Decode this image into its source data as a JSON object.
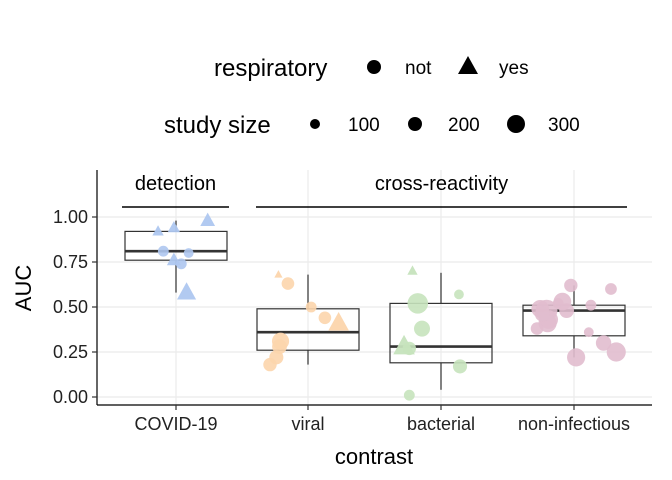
{
  "chart_data": {
    "type": "boxplot",
    "xlabel": "contrast",
    "ylabel": "AUC",
    "categories": [
      "COVID-19",
      "viral",
      "bacterial",
      "non-infectious"
    ],
    "ylim": [
      -0.05,
      1.25
    ],
    "yticks": [
      "0.00",
      "0.25",
      "0.50",
      "0.75",
      "1.00"
    ],
    "ytick_values": [
      0,
      0.25,
      0.5,
      0.75,
      1.0
    ],
    "grid": true,
    "legend_placement": "top",
    "legend": {
      "respiratory": {
        "title": "respiratory",
        "entries": [
          {
            "label": "not",
            "shape": "circle"
          },
          {
            "label": "yes",
            "shape": "triangle"
          }
        ]
      },
      "study_size": {
        "title": "study size",
        "entries": [
          {
            "label": "100",
            "value": 100
          },
          {
            "label": "200",
            "value": 200
          },
          {
            "label": "300",
            "value": 300
          }
        ]
      }
    },
    "groups": [
      {
        "label": "detection",
        "categories": [
          "COVID-19"
        ]
      },
      {
        "label": "cross-reactivity",
        "categories": [
          "viral",
          "bacterial",
          "non-infectious"
        ]
      }
    ],
    "colors": {
      "COVID-19": "#aec7f0",
      "viral": "#fcd5ac",
      "bacterial": "#c6e3bd",
      "non-infectious": "#e1bcce"
    },
    "boxes": [
      {
        "category": "COVID-19",
        "whisker_low": 0.58,
        "q1": 0.76,
        "median": 0.81,
        "q3": 0.92,
        "whisker_high": 0.98
      },
      {
        "category": "viral",
        "whisker_low": 0.18,
        "q1": 0.26,
        "median": 0.36,
        "q3": 0.49,
        "whisker_high": 0.68
      },
      {
        "category": "bacterial",
        "whisker_low": 0.04,
        "q1": 0.19,
        "median": 0.28,
        "q3": 0.52,
        "whisker_high": 0.69
      },
      {
        "category": "non-infectious",
        "whisker_low": 0.22,
        "q1": 0.34,
        "median": 0.48,
        "q3": 0.51,
        "whisker_high": 0.62
      }
    ],
    "points": [
      {
        "category": "COVID-19",
        "jitter": -0.17,
        "y": 0.92,
        "respiratory": "yes",
        "size": 40
      },
      {
        "category": "COVID-19",
        "jitter": -0.12,
        "y": 0.81,
        "respiratory": "not",
        "size": 40
      },
      {
        "category": "COVID-19",
        "jitter": -0.02,
        "y": 0.94,
        "respiratory": "yes",
        "size": 50
      },
      {
        "category": "COVID-19",
        "jitter": -0.02,
        "y": 0.76,
        "respiratory": "yes",
        "size": 70
      },
      {
        "category": "COVID-19",
        "jitter": 0.05,
        "y": 0.74,
        "respiratory": "not",
        "size": 40
      },
      {
        "category": "COVID-19",
        "jitter": 0.12,
        "y": 0.8,
        "respiratory": "not",
        "size": 30
      },
      {
        "category": "COVID-19",
        "jitter": 0.3,
        "y": 0.98,
        "respiratory": "yes",
        "size": 80
      },
      {
        "category": "COVID-19",
        "jitter": 0.1,
        "y": 0.58,
        "respiratory": "yes",
        "size": 150
      },
      {
        "category": "viral",
        "jitter": -0.28,
        "y": 0.68,
        "respiratory": "yes",
        "size": 15
      },
      {
        "category": "viral",
        "jitter": -0.19,
        "y": 0.63,
        "respiratory": "not",
        "size": 60
      },
      {
        "category": "viral",
        "jitter": 0.03,
        "y": 0.5,
        "respiratory": "not",
        "size": 40
      },
      {
        "category": "viral",
        "jitter": 0.16,
        "y": 0.44,
        "respiratory": "not",
        "size": 60
      },
      {
        "category": "viral",
        "jitter": 0.29,
        "y": 0.41,
        "respiratory": "yes",
        "size": 180
      },
      {
        "category": "viral",
        "jitter": -0.26,
        "y": 0.31,
        "respiratory": "not",
        "size": 130
      },
      {
        "category": "viral",
        "jitter": -0.27,
        "y": 0.28,
        "respiratory": "not",
        "size": 90
      },
      {
        "category": "viral",
        "jitter": -0.3,
        "y": 0.22,
        "respiratory": "not",
        "size": 80
      },
      {
        "category": "viral",
        "jitter": -0.36,
        "y": 0.18,
        "respiratory": "not",
        "size": 70
      },
      {
        "category": "bacterial",
        "jitter": -0.27,
        "y": 0.7,
        "respiratory": "yes",
        "size": 30
      },
      {
        "category": "bacterial",
        "jitter": -0.22,
        "y": 0.52,
        "respiratory": "not",
        "size": 200
      },
      {
        "category": "bacterial",
        "jitter": -0.18,
        "y": 0.38,
        "respiratory": "not",
        "size": 110
      },
      {
        "category": "bacterial",
        "jitter": -0.35,
        "y": 0.28,
        "respiratory": "yes",
        "size": 200
      },
      {
        "category": "bacterial",
        "jitter": -0.3,
        "y": 0.27,
        "respiratory": "not",
        "size": 70
      },
      {
        "category": "bacterial",
        "jitter": -0.3,
        "y": 0.01,
        "respiratory": "not",
        "size": 40
      },
      {
        "category": "bacterial",
        "jitter": 0.17,
        "y": 0.57,
        "respiratory": "not",
        "size": 30
      },
      {
        "category": "bacterial",
        "jitter": 0.18,
        "y": 0.17,
        "respiratory": "not",
        "size": 80
      },
      {
        "category": "non-infectious",
        "jitter": -0.32,
        "y": 0.49,
        "respiratory": "not",
        "size": 140
      },
      {
        "category": "non-infectious",
        "jitter": -0.26,
        "y": 0.48,
        "respiratory": "not",
        "size": 230
      },
      {
        "category": "non-infectious",
        "jitter": -0.24,
        "y": 0.43,
        "respiratory": "not",
        "size": 160
      },
      {
        "category": "non-infectious",
        "jitter": -0.25,
        "y": 0.41,
        "respiratory": "not",
        "size": 150
      },
      {
        "category": "non-infectious",
        "jitter": -0.3,
        "y": 0.46,
        "respiratory": "not",
        "size": 90
      },
      {
        "category": "non-infectious",
        "jitter": -0.35,
        "y": 0.38,
        "respiratory": "not",
        "size": 60
      },
      {
        "category": "non-infectious",
        "jitter": -0.15,
        "y": 0.52,
        "respiratory": "not",
        "size": 40
      },
      {
        "category": "non-infectious",
        "jitter": -0.11,
        "y": 0.53,
        "respiratory": "not",
        "size": 140
      },
      {
        "category": "non-infectious",
        "jitter": -0.07,
        "y": 0.48,
        "respiratory": "not",
        "size": 90
      },
      {
        "category": "non-infectious",
        "jitter": -0.03,
        "y": 0.62,
        "respiratory": "not",
        "size": 70
      },
      {
        "category": "non-infectious",
        "jitter": 0.02,
        "y": 0.22,
        "respiratory": "not",
        "size": 150
      },
      {
        "category": "non-infectious",
        "jitter": 0.14,
        "y": 0.36,
        "respiratory": "not",
        "size": 30
      },
      {
        "category": "non-infectious",
        "jitter": 0.16,
        "y": 0.51,
        "respiratory": "not",
        "size": 40
      },
      {
        "category": "non-infectious",
        "jitter": 0.28,
        "y": 0.3,
        "respiratory": "not",
        "size": 100
      },
      {
        "category": "non-infectious",
        "jitter": 0.35,
        "y": 0.6,
        "respiratory": "not",
        "size": 50
      },
      {
        "category": "non-infectious",
        "jitter": 0.4,
        "y": 0.25,
        "respiratory": "not",
        "size": 170
      }
    ]
  }
}
